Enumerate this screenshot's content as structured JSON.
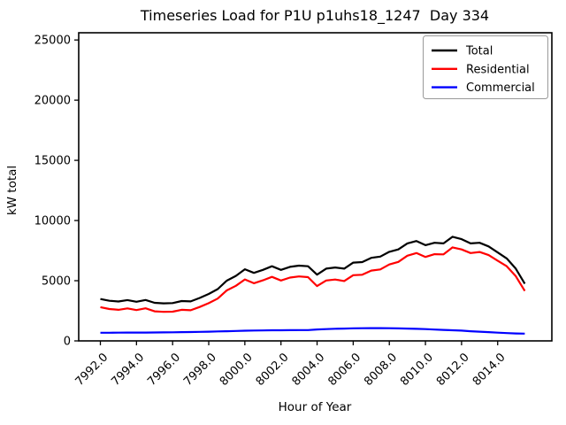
{
  "figure": {
    "background": "#ffffff",
    "text_color": "#000000"
  },
  "chart_data": {
    "type": "line",
    "title": "Timeseries Load for P1U p1uhs18_1247  Day 334",
    "xlabel": "Hour of Year",
    "ylabel": "kW total",
    "xlim": [
      7990.8,
      8017.0
    ],
    "ylim": [
      0,
      25600
    ],
    "grid": false,
    "legend_position": "upper right",
    "xtick_labels": [
      "7992.0",
      "7994.0",
      "7996.0",
      "7998.0",
      "8000.0",
      "8002.0",
      "8004.0",
      "8006.0",
      "8008.0",
      "8010.0",
      "8012.0",
      "8014.0"
    ],
    "xtick_values": [
      7992,
      7994,
      7996,
      7998,
      8000,
      8002,
      8004,
      8006,
      8008,
      8010,
      8012,
      8014
    ],
    "ytick_labels": [
      "0",
      "5000",
      "10000",
      "15000",
      "20000",
      "25000"
    ],
    "ytick_values": [
      0,
      5000,
      10000,
      15000,
      20000,
      25000
    ],
    "x": [
      7992,
      7992.5,
      7993,
      7993.5,
      7994,
      7994.5,
      7995,
      7995.5,
      7996,
      7996.5,
      7997,
      7997.5,
      7998,
      7998.5,
      7999,
      7999.5,
      8000,
      8000.5,
      8001,
      8001.5,
      8002,
      8002.5,
      8003,
      8003.5,
      8004,
      8004.5,
      8005,
      8005.5,
      8006,
      8006.5,
      8007,
      8007.5,
      8008,
      8008.5,
      8009,
      8009.5,
      8010,
      8010.5,
      8011,
      8011.5,
      8012,
      8012.5,
      8013,
      8013.5,
      8014,
      8014.5,
      8015,
      8015.5
    ],
    "series": [
      {
        "name": "Total",
        "color": "#000000",
        "values": [
          3480,
          3330,
          3270,
          3390,
          3250,
          3400,
          3160,
          3120,
          3140,
          3310,
          3280,
          3570,
          3900,
          4300,
          5000,
          5400,
          5950,
          5650,
          5900,
          6200,
          5900,
          6150,
          6250,
          6200,
          5500,
          6000,
          6100,
          6000,
          6500,
          6550,
          6900,
          7000,
          7400,
          7600,
          8100,
          8300,
          7950,
          8150,
          8100,
          8650,
          8450,
          8100,
          8150,
          7850,
          7350,
          6850,
          6000,
          4750
        ]
      },
      {
        "name": "Residential",
        "color": "#ff0000",
        "values": [
          2800,
          2650,
          2585,
          2700,
          2560,
          2705,
          2460,
          2415,
          2425,
          2585,
          2545,
          2820,
          3135,
          3515,
          4195,
          4575,
          5105,
          4790,
          5030,
          5320,
          5015,
          5260,
          5355,
          5300,
          4550,
          5020,
          5095,
          4975,
          5455,
          5495,
          5840,
          5940,
          6350,
          6560,
          7080,
          7300,
          6975,
          7205,
          7185,
          7765,
          7600,
          7295,
          7385,
          7125,
          6665,
          6200,
          5380,
          4150
        ]
      },
      {
        "name": "Commercial",
        "color": "#0000ff",
        "values": [
          680,
          680,
          685,
          690,
          690,
          695,
          700,
          705,
          715,
          725,
          735,
          750,
          765,
          785,
          805,
          825,
          845,
          860,
          870,
          880,
          885,
          890,
          895,
          900,
          950,
          980,
          1005,
          1025,
          1045,
          1055,
          1060,
          1060,
          1050,
          1040,
          1020,
          1000,
          975,
          945,
          915,
          885,
          850,
          805,
          765,
          725,
          685,
          650,
          620,
          600
        ]
      }
    ]
  }
}
